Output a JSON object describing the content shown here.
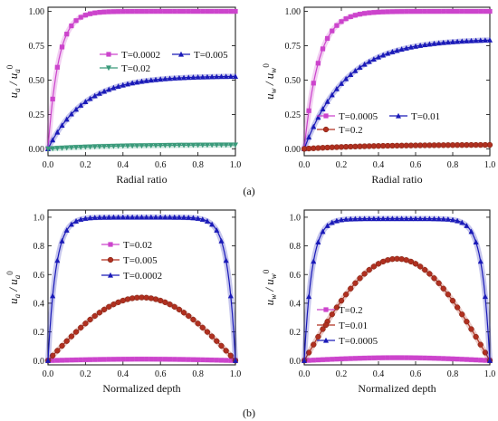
{
  "figure": {
    "part_a_label": "(a)",
    "part_b_label": "(b)"
  },
  "chart_data": [
    {
      "type": "line",
      "panel": "a-left",
      "xlabel": "Radial ratio",
      "ylabel": {
        "main": "u",
        "sub": "a",
        "den_main": "u",
        "den_sub": "a",
        "den_sup": "0"
      },
      "xlim": [
        0,
        1
      ],
      "ylim": [
        -0.05,
        1.03
      ],
      "xticks": [
        "0.0",
        "0.2",
        "0.4",
        "0.6",
        "0.8",
        "1.0"
      ],
      "xtick_values": [
        0,
        0.2,
        0.4,
        0.6,
        0.8,
        1.0
      ],
      "yticks": [
        "0.00",
        "0.25",
        "0.50",
        "0.75",
        "1.00"
      ],
      "ytick_values": [
        0,
        0.25,
        0.5,
        0.75,
        1.0
      ],
      "legend_position": "upper-middle",
      "series": [
        {
          "name": "T=0.0002",
          "color": "#cc44cc",
          "marker": "square",
          "model": "sat",
          "A": 1.0,
          "k": 18,
          "x0": 0.0
        },
        {
          "name": "T=0.005",
          "color": "#1a1ab8",
          "marker": "triangle-up",
          "model": "sat",
          "A": 0.53,
          "k": 5.2,
          "x0": 0.0
        },
        {
          "name": "T=0.02",
          "color": "#3a9a7a",
          "marker": "triangle-down",
          "model": "sat",
          "A": 0.03,
          "k": 3,
          "x0": 0.0
        }
      ],
      "legend_layout": [
        [
          "T=0.0002",
          "T=0.005"
        ],
        [
          "T=0.02"
        ]
      ]
    },
    {
      "type": "line",
      "panel": "a-right",
      "xlabel": "Radial ratio",
      "ylabel": {
        "main": "u",
        "sub": "w",
        "den_main": "u",
        "den_sub": "w",
        "den_sup": "0"
      },
      "xlim": [
        0,
        1
      ],
      "ylim": [
        -0.05,
        1.03
      ],
      "xticks": [
        "0.0",
        "0.2",
        "0.4",
        "0.6",
        "0.8",
        "1.0"
      ],
      "xtick_values": [
        0,
        0.2,
        0.4,
        0.6,
        0.8,
        1.0
      ],
      "yticks": [
        "0.00",
        "0.25",
        "0.50",
        "0.75",
        "1.00"
      ],
      "ytick_values": [
        0,
        0.25,
        0.5,
        0.75,
        1.0
      ],
      "legend_position": "lower-middle",
      "series": [
        {
          "name": "T=0.0005",
          "color": "#cc44cc",
          "marker": "square",
          "model": "sat",
          "A": 1.0,
          "k": 13,
          "x0": 0.0
        },
        {
          "name": "T=0.01",
          "color": "#1a1ab8",
          "marker": "triangle-up",
          "model": "sat",
          "A": 0.8,
          "k": 4.5,
          "x0": 0.0
        },
        {
          "name": "T=0.2",
          "color": "#b03020",
          "marker": "circle",
          "model": "sat",
          "A": 0.03,
          "k": 3,
          "x0": 0.0
        }
      ],
      "legend_layout": [
        [
          "T=0.0005",
          "T=0.01"
        ],
        [
          "T=0.2"
        ]
      ]
    },
    {
      "type": "line",
      "panel": "b-left",
      "xlabel": "Normalized depth",
      "ylabel": {
        "main": "u",
        "sub": "a",
        "den_main": "u",
        "den_sub": "a",
        "den_sup": "0"
      },
      "xlim": [
        0,
        1
      ],
      "ylim": [
        -0.03,
        1.05
      ],
      "xticks": [
        "0.0",
        "0.2",
        "0.4",
        "0.6",
        "0.8",
        "1.0"
      ],
      "xtick_values": [
        0,
        0.2,
        0.4,
        0.6,
        0.8,
        1.0
      ],
      "yticks": [
        "0.0",
        "0.2",
        "0.4",
        "0.6",
        "0.8",
        "1.0"
      ],
      "ytick_values": [
        0,
        0.2,
        0.4,
        0.6,
        0.8,
        1.0
      ],
      "legend_position": "upper-middle",
      "series": [
        {
          "name": "T=0.02",
          "color": "#cc44cc",
          "marker": "square",
          "model": "bell",
          "A": 0.01
        },
        {
          "name": "T=0.005",
          "color": "#b03020",
          "marker": "circle",
          "model": "bell",
          "A": 0.44
        },
        {
          "name": "T=0.0002",
          "color": "#1a1ab8",
          "marker": "triangle-up",
          "model": "plateau",
          "A": 1.0
        }
      ],
      "legend_layout": [
        [
          "T=0.02"
        ],
        [
          "T=0.005"
        ],
        [
          "T=0.0002"
        ]
      ]
    },
    {
      "type": "line",
      "panel": "b-right",
      "xlabel": "Normalized depth",
      "ylabel": {
        "main": "u",
        "sub": "w",
        "den_main": "u",
        "den_sub": "w",
        "den_sup": "0"
      },
      "xlim": [
        0,
        1
      ],
      "ylim": [
        -0.03,
        1.05
      ],
      "xticks": [
        "0.0",
        "0.2",
        "0.4",
        "0.6",
        "0.8",
        "1.0"
      ],
      "xtick_values": [
        0,
        0.2,
        0.4,
        0.6,
        0.8,
        1.0
      ],
      "yticks": [
        "0.0",
        "0.2",
        "0.4",
        "0.6",
        "0.8",
        "1.0"
      ],
      "ytick_values": [
        0,
        0.2,
        0.4,
        0.6,
        0.8,
        1.0
      ],
      "legend_position": "lower-middle",
      "series": [
        {
          "name": "T=0.2",
          "color": "#cc44cc",
          "marker": "square",
          "model": "bell",
          "A": 0.02
        },
        {
          "name": "T=0.01",
          "color": "#b03020",
          "marker": "circle",
          "model": "bell",
          "A": 0.71
        },
        {
          "name": "T=0.0005",
          "color": "#1a1ab8",
          "marker": "triangle-up",
          "model": "plateau",
          "A": 0.99
        }
      ],
      "legend_layout": [
        [
          "T=0.2"
        ],
        [
          "T=0.01"
        ],
        [
          "T=0.0005"
        ]
      ]
    }
  ]
}
